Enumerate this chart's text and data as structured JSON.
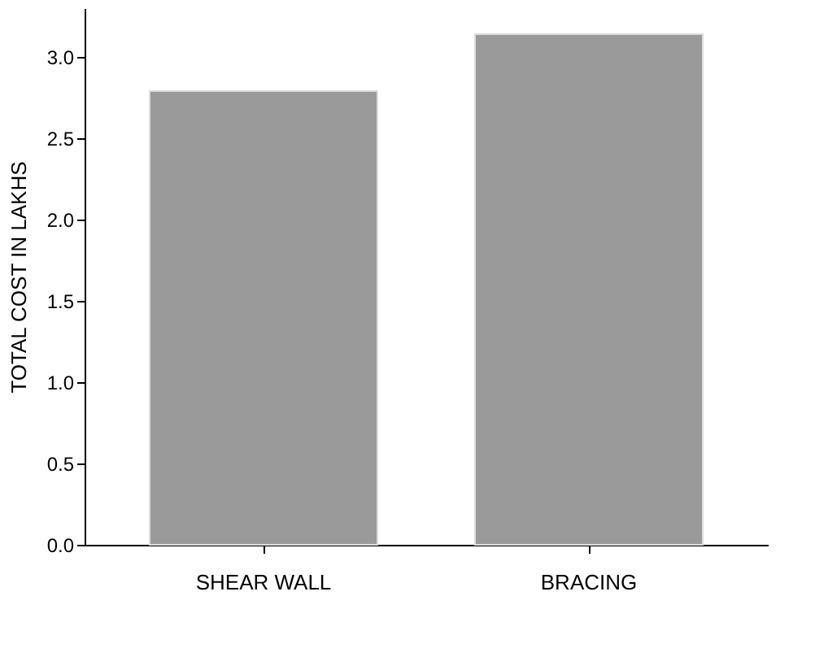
{
  "chart_data": {
    "type": "bar",
    "ylabel": "TOTAL COST IN LAKHS",
    "categories": [
      "SHEAR WALL",
      "BRACING"
    ],
    "values": [
      2.79,
      3.14
    ],
    "color": "#9a9a9a",
    "ylim": [
      0,
      3.3
    ],
    "yticks": [
      {
        "value": 0,
        "label": "0.0"
      },
      {
        "value": 0.5,
        "label": "0.5"
      },
      {
        "value": 1,
        "label": "1.0"
      },
      {
        "value": 1.5,
        "label": "1.5"
      },
      {
        "value": 2,
        "label": "2.0"
      },
      {
        "value": 2.5,
        "label": "2.5"
      },
      {
        "value": 3,
        "label": "3.0"
      }
    ],
    "grid": false
  }
}
